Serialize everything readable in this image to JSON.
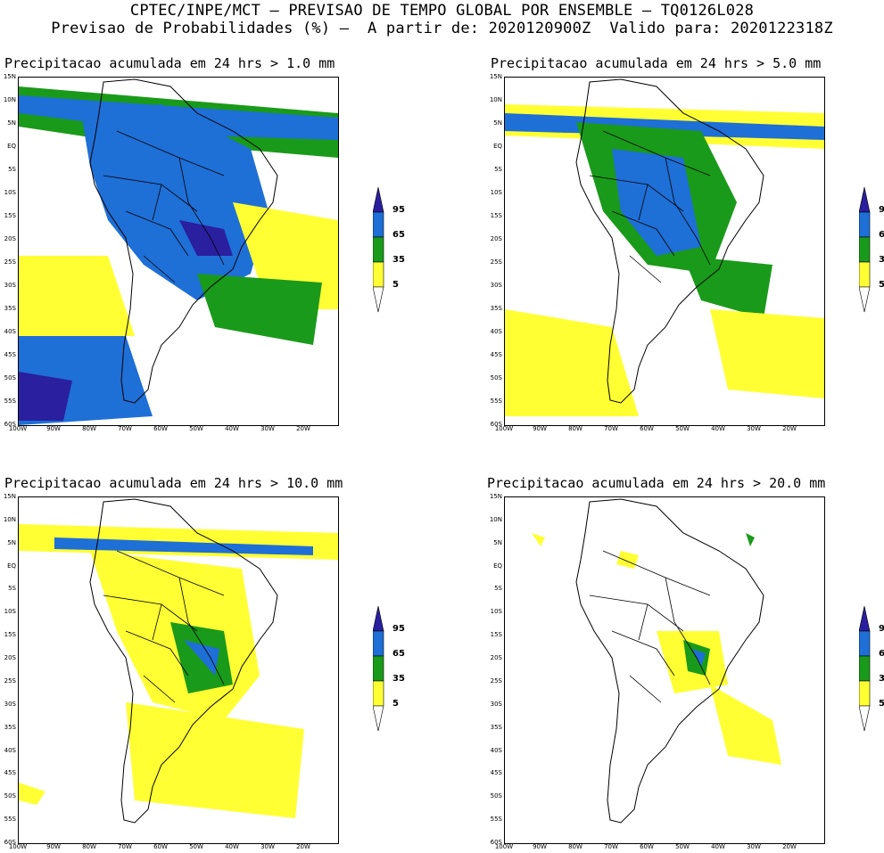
{
  "header": {
    "line1": "CPTEC/INPE/MCT — PREVISAO DE TEMPO GLOBAL POR ENSEMBLE — TQ0126L028",
    "line2": "Previsao de Probabilidades (%) —  A partir de: 2020120900Z  Valido para: 2020122318Z"
  },
  "panels": [
    {
      "title": "Precipitacao acumulada em 24 hrs > 1.0 mm",
      "level": 4
    },
    {
      "title": "Precipitacao acumulada em 24 hrs > 5.0 mm",
      "level": 3
    },
    {
      "title": "Precipitacao acumulada em 24 hrs > 10.0 mm",
      "level": 2
    },
    {
      "title": "Precipitacao acumulada em 24 hrs > 20.0 mm",
      "level": 1
    }
  ],
  "lat_labels": [
    "15N",
    "10N",
    "5N",
    "EQ",
    "5S",
    "10S",
    "15S",
    "20S",
    "25S",
    "30S",
    "35S",
    "40S",
    "45S",
    "50S",
    "55S",
    "60S"
  ],
  "lon_labels": [
    "100W",
    "90W",
    "80W",
    "70W",
    "60W",
    "50W",
    "40W",
    "30W",
    "20W"
  ],
  "colorbar": {
    "labels": [
      "95",
      "65",
      "35",
      "5"
    ],
    "colors": {
      "c95": "#2a1f9e",
      "c65": "#1e6fd6",
      "c35": "#1a9a1a",
      "c5": "#ffff33",
      "land_line": "#000000"
    }
  }
}
